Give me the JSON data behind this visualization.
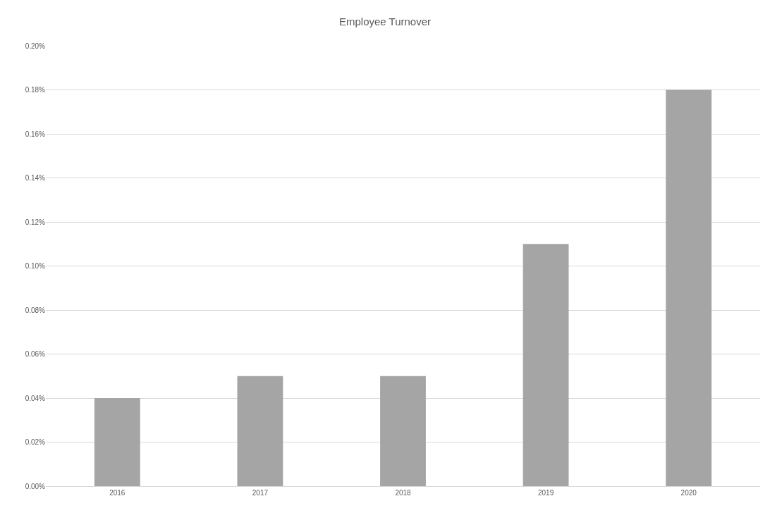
{
  "chart_data": {
    "type": "bar",
    "title": "Employee Turnover",
    "categories": [
      "2016",
      "2017",
      "2018",
      "2019",
      "2020"
    ],
    "values": [
      0.04,
      0.05,
      0.05,
      0.11,
      0.18
    ],
    "color": "#a5a5a5",
    "ylim": [
      0,
      0.2
    ],
    "yticks": [
      {
        "value": 0,
        "label": "0.00%"
      },
      {
        "value": 0.02,
        "label": "0.02%"
      },
      {
        "value": 0.04,
        "label": "0.04%"
      },
      {
        "value": 0.06,
        "label": "0.06%"
      },
      {
        "value": 0.08,
        "label": "0.08%"
      },
      {
        "value": 0.1,
        "label": "0.10%"
      },
      {
        "value": 0.12,
        "label": "0.12%"
      },
      {
        "value": 0.14,
        "label": "0.14%"
      },
      {
        "value": 0.16,
        "label": "0.16%"
      },
      {
        "value": 0.18,
        "label": "0.18%"
      },
      {
        "value": 0.2,
        "label": "0.20%"
      }
    ],
    "grid": "y",
    "legend": false
  }
}
